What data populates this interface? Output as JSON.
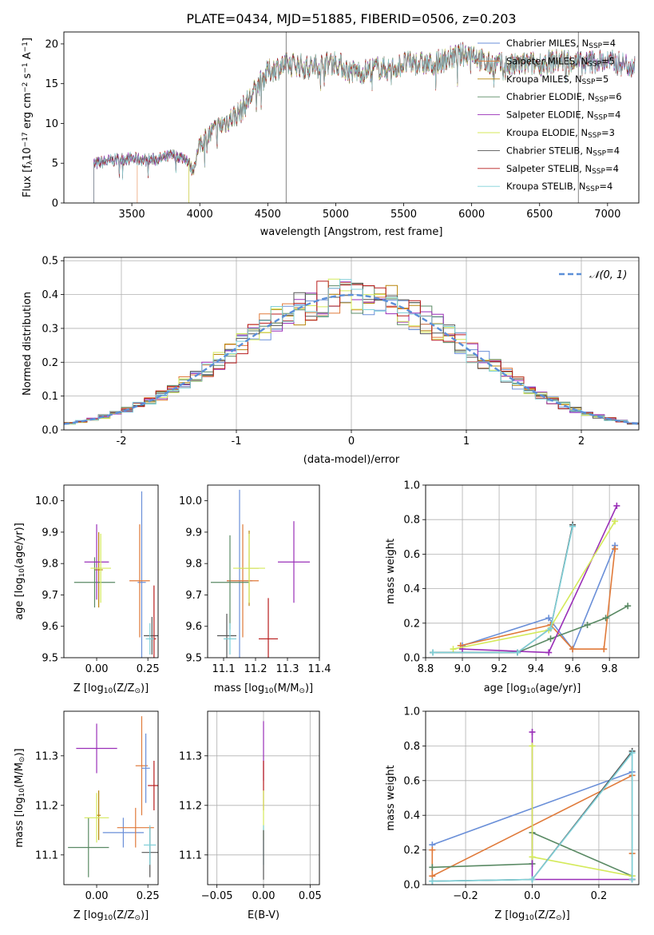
{
  "figure_title": "PLATE=0434, MJD=51885, FIBERID=0506, z=0.203",
  "series_styles": [
    {
      "name": "Chabrier MILES, N_SSP=4",
      "legend": "Chabrier MILES, N",
      "nssp": "=4",
      "color": "#6a8fd8"
    },
    {
      "name": "Salpeter MILES, N_SSP=5",
      "legend": "Salpeter MILES, N",
      "nssp": "=5",
      "color": "#e07a3a"
    },
    {
      "name": "Kroupa MILES, N_SSP=5",
      "legend": "Kroupa MILES, N",
      "nssp": "=5",
      "color": "#b8860b"
    },
    {
      "name": "Chabrier ELODIE, N_SSP=6",
      "legend": "Chabrier ELODIE, N",
      "nssp": "=6",
      "color": "#5a8a64"
    },
    {
      "name": "Salpeter ELODIE, N_SSP=4",
      "legend": "Salpeter ELODIE, N",
      "nssp": "=4",
      "color": "#9a2fb8"
    },
    {
      "name": "Kroupa ELODIE, N_SSP=3",
      "legend": "Kroupa ELODIE, N",
      "nssp": "=3",
      "color": "#d4ea5a"
    },
    {
      "name": "Chabrier STELIB, N_SSP=4",
      "legend": "Chabrier STELIB, N",
      "nssp": "=4",
      "color": "#555555"
    },
    {
      "name": "Salpeter STELIB, N_SSP=4",
      "legend": "Salpeter STELIB, N",
      "nssp": "=4",
      "color": "#b81c1c"
    },
    {
      "name": "Kroupa STELIB, N_SSP=4",
      "legend": "Kroupa STELIB, N",
      "nssp": "=4",
      "color": "#7fd0d8"
    }
  ],
  "chart_data": [
    {
      "id": "spectrum",
      "type": "line",
      "xlabel": "wavelength [Angstrom, rest frame]",
      "ylabel": "Flux [f",
      "ylabel_sub": "λ",
      "ylabel_rest": "10",
      "ylabel_exp": "−17",
      "ylabel_tail": " erg cm",
      "ylabel_exp2": "−2",
      "ylabel_tail2": " s",
      "ylabel_exp3": "−1",
      "ylabel_tail3": " A",
      "ylabel_exp4": "−1",
      "ylabel_tail4": "]",
      "xlim": [
        3000,
        7230
      ],
      "ylim": [
        0,
        21.5
      ],
      "xticks": [
        3500,
        4000,
        4500,
        5000,
        5500,
        6000,
        6500,
        7000
      ],
      "yticks": [
        0,
        5,
        10,
        15,
        20
      ],
      "grid": false,
      "legend_placement": "right",
      "spectrum_anchor_x": [
        3200,
        3300,
        3400,
        3500,
        3600,
        3700,
        3800,
        3900,
        3950,
        4000,
        4100,
        4200,
        4300,
        4400,
        4500,
        4600,
        4700,
        4800,
        4900,
        5000,
        5100,
        5200,
        5300,
        5400,
        5500,
        5600,
        5700,
        5800,
        5900,
        6000,
        6100,
        6200,
        6300,
        6400,
        6500,
        6600,
        6700,
        6800,
        6900,
        7000,
        7100,
        7200
      ],
      "spectrum_anchor_y": [
        4.8,
        5.2,
        5.5,
        5.6,
        5.4,
        5.5,
        6.0,
        5.6,
        4.0,
        7.5,
        9.0,
        10.3,
        11.5,
        14.0,
        16.5,
        17.2,
        17.5,
        17.0,
        17.4,
        17.8,
        16.5,
        16.5,
        17.0,
        16.8,
        17.5,
        17.6,
        17.4,
        18.0,
        18.5,
        19.0,
        17.5,
        17.4,
        17.2,
        17.5,
        17.5,
        17.8,
        18.0,
        17.5,
        17.8,
        17.8,
        17.5,
        17.3
      ],
      "series_start_x": [
        3220,
        3540,
        3920,
        3220,
        3220,
        3920,
        3220,
        3220,
        3220
      ],
      "series_end_x": [
        7200,
        7200,
        6780,
        7200,
        7200,
        6780,
        7200,
        7200,
        7200
      ],
      "spike_x": [
        4635,
        6785
      ]
    },
    {
      "id": "residuals",
      "type": "histogram",
      "xlabel": "(data-model)/error",
      "ylabel": "Normed distribution",
      "xlim": [
        -2.5,
        2.5
      ],
      "ylim": [
        0,
        0.51
      ],
      "xticks": [
        -2,
        -1,
        0,
        1,
        2
      ],
      "yticks": [
        0.0,
        0.1,
        0.2,
        0.3,
        0.4,
        0.5
      ],
      "grid": true,
      "bin_width": 0.1,
      "legend_label": "𝒩(0, 1)",
      "legend_placement": "top-right",
      "normal_color": "#5b8fd8"
    },
    {
      "id": "age_vs_Z",
      "type": "errorbar",
      "xlabel": "Z [log",
      "xlabel_sub": "10",
      "xlabel_tail": "(Z/Z",
      "xlabel_sub2": "⊙",
      "xlabel_tail2": ")]",
      "ylabel": "age  [log",
      "ylabel_sub": "10",
      "ylabel_tail": "(age/yr)]",
      "xlim": [
        -0.16,
        0.3
      ],
      "ylim": [
        9.5,
        10.05
      ],
      "xticks": [
        0.0,
        0.25
      ],
      "xtick_labels": [
        "0.00",
        "0.25"
      ],
      "yticks": [
        9.5,
        9.6,
        9.7,
        9.8,
        9.9,
        10.0
      ],
      "points": [
        {
          "series": 0,
          "x": 0.22,
          "y": 9.74,
          "xerr": 0.02,
          "yerr": 0.29
        },
        {
          "series": 1,
          "x": 0.21,
          "y": 9.745,
          "xerr": 0.05,
          "yerr": 0.18
        },
        {
          "series": 2,
          "x": 0.01,
          "y": 9.78,
          "xerr": 0.02,
          "yerr": 0.12
        },
        {
          "series": 3,
          "x": -0.01,
          "y": 9.74,
          "xerr": 0.1,
          "yerr": 0.08
        },
        {
          "series": 4,
          "x": 0.0,
          "y": 9.805,
          "xerr": 0.06,
          "yerr": 0.12
        },
        {
          "series": 5,
          "x": 0.02,
          "y": 9.785,
          "xerr": 0.05,
          "yerr": 0.11
        },
        {
          "series": 6,
          "x": 0.27,
          "y": 9.57,
          "xerr": 0.04,
          "yerr": 0.06
        },
        {
          "series": 7,
          "x": 0.28,
          "y": 9.56,
          "xerr": 0.01,
          "yerr": 0.17
        },
        {
          "series": 8,
          "x": 0.26,
          "y": 9.56,
          "xerr": 0.02,
          "yerr": 0.05
        }
      ]
    },
    {
      "id": "age_vs_mass",
      "type": "errorbar",
      "xlabel": "mass [log",
      "xlabel_sub": "10",
      "xlabel_tail": "(M/M",
      "xlabel_sub2": "⊙",
      "xlabel_tail2": ")]",
      "xlim": [
        11.05,
        11.4
      ],
      "ylim": [
        9.5,
        10.05
      ],
      "xticks": [
        11.1,
        11.2,
        11.3,
        11.4
      ],
      "yticks": [
        9.5,
        9.6,
        9.7,
        9.8,
        9.9,
        10.0
      ],
      "points": [
        {
          "series": 0,
          "x": 11.15,
          "y": 9.745,
          "xerr": 0.04,
          "yerr": 0.29
        },
        {
          "series": 1,
          "x": 11.16,
          "y": 9.745,
          "xerr": 0.05,
          "yerr": 0.18
        },
        {
          "series": 2,
          "x": 11.18,
          "y": 9.785,
          "xerr": 0.03,
          "yerr": 0.12
        },
        {
          "series": 3,
          "x": 11.12,
          "y": 9.74,
          "xerr": 0.06,
          "yerr": 0.15
        },
        {
          "series": 4,
          "x": 11.32,
          "y": 9.805,
          "xerr": 0.05,
          "yerr": 0.13
        },
        {
          "series": 5,
          "x": 11.18,
          "y": 9.785,
          "xerr": 0.05,
          "yerr": 0.11
        },
        {
          "series": 6,
          "x": 11.11,
          "y": 9.57,
          "xerr": 0.03,
          "yerr": 0.07
        },
        {
          "series": 7,
          "x": 11.24,
          "y": 9.56,
          "xerr": 0.03,
          "yerr": 0.13
        },
        {
          "series": 8,
          "x": 11.12,
          "y": 9.56,
          "xerr": 0.02,
          "yerr": 0.05
        }
      ]
    },
    {
      "id": "weight_vs_age",
      "type": "line",
      "xlabel": "age  [log",
      "xlabel_sub": "10",
      "xlabel_tail": "(age/yr)]",
      "ylabel": "mass weight",
      "xlim": [
        8.8,
        9.96
      ],
      "ylim": [
        0,
        1.0
      ],
      "xticks": [
        8.8,
        9.0,
        9.2,
        9.4,
        9.6,
        9.8
      ],
      "yticks": [
        0.0,
        0.2,
        0.4,
        0.6,
        0.8,
        1.0
      ],
      "grid": true,
      "series": [
        {
          "series": 0,
          "x": [
            9.0,
            9.47,
            9.6,
            9.83
          ],
          "y": [
            0.07,
            0.23,
            0.05,
            0.65
          ]
        },
        {
          "series": 1,
          "x": [
            8.99,
            9.48,
            9.6,
            9.77,
            9.83
          ],
          "y": [
            0.07,
            0.19,
            0.05,
            0.05,
            0.63
          ]
        },
        {
          "series": 3,
          "x": [
            8.84,
            9.3,
            9.48,
            9.68,
            9.78,
            9.9
          ],
          "y": [
            0.03,
            0.03,
            0.11,
            0.19,
            0.23,
            0.3
          ]
        },
        {
          "series": 4,
          "x": [
            9.0,
            9.47,
            9.84
          ],
          "y": [
            0.05,
            0.03,
            0.88
          ]
        },
        {
          "series": 5,
          "x": [
            8.95,
            9.47,
            9.83
          ],
          "y": [
            0.05,
            0.16,
            0.79
          ]
        },
        {
          "series": 6,
          "x": [
            8.84,
            9.3,
            9.48,
            9.6
          ],
          "y": [
            0.03,
            0.03,
            0.17,
            0.77
          ]
        },
        {
          "series": 8,
          "x": [
            8.84,
            9.3,
            9.48,
            9.6
          ],
          "y": [
            0.03,
            0.03,
            0.17,
            0.76
          ]
        }
      ]
    },
    {
      "id": "mass_vs_Z",
      "type": "errorbar",
      "xlabel": "Z [log",
      "xlabel_sub": "10",
      "xlabel_tail": "(Z/Z",
      "xlabel_sub2": "⊙",
      "xlabel_tail2": ")]",
      "ylabel": "mass [log",
      "ylabel_sub": "10",
      "ylabel_tail": "(M/M",
      "ylabel_sub2": "⊙",
      "ylabel_tail2": ")]",
      "xlim": [
        -0.16,
        0.3
      ],
      "ylim": [
        11.04,
        11.39
      ],
      "xticks": [
        0.0,
        0.25
      ],
      "xtick_labels": [
        "0.00",
        "0.25"
      ],
      "yticks": [
        11.1,
        11.2,
        11.3
      ],
      "points": [
        {
          "series": 0,
          "x": 0.13,
          "y": 11.145,
          "xerr": 0.1,
          "yerr": 0.03
        },
        {
          "series": 1,
          "x": 0.19,
          "y": 11.155,
          "xerr": 0.09,
          "yerr": 0.04
        },
        {
          "series": 2,
          "x": 0.01,
          "y": 11.18,
          "xerr": 0.01,
          "yerr": 0.05
        },
        {
          "series": 3,
          "x": -0.04,
          "y": 11.115,
          "xerr": 0.1,
          "yerr": 0.06
        },
        {
          "series": 4,
          "x": 0.0,
          "y": 11.315,
          "xerr": 0.1,
          "yerr": 0.05
        },
        {
          "series": 5,
          "x": 0.0,
          "y": 11.175,
          "xerr": 0.06,
          "yerr": 0.05
        },
        {
          "series": 6,
          "x": 0.26,
          "y": 11.105,
          "xerr": 0.04,
          "yerr": 0.05
        },
        {
          "series": 7,
          "x": 0.28,
          "y": 11.24,
          "xerr": 0.03,
          "yerr": 0.05
        },
        {
          "series": 8,
          "x": 0.26,
          "y": 11.12,
          "xerr": 0.03,
          "yerr": 0.04
        },
        {
          "series": 1,
          "x": 0.22,
          "y": 11.28,
          "xerr": 0.03,
          "yerr": 0.1
        },
        {
          "series": 0,
          "x": 0.24,
          "y": 11.275,
          "xerr": 0.02,
          "yerr": 0.07
        }
      ]
    },
    {
      "id": "mass_vs_EBV",
      "type": "errorbar",
      "xlabel": "E(B-V)",
      "xlim": [
        -0.06,
        0.06
      ],
      "ylim": [
        11.04,
        11.39
      ],
      "xticks": [
        -0.05,
        0.0,
        0.05
      ],
      "xtick_labels": [
        "−0.05",
        "0.00",
        "0.05"
      ],
      "yticks": [
        11.1,
        11.2,
        11.3
      ],
      "grid": true,
      "points": [
        {
          "series": 4,
          "x": 0.0,
          "y": 11.31,
          "xerr": 0.0,
          "yerr": 0.06
        },
        {
          "series": 7,
          "x": 0.0,
          "y": 11.24,
          "xerr": 0.0,
          "yerr": 0.05
        },
        {
          "series": 5,
          "x": 0.0,
          "y": 11.18,
          "xerr": 0.0,
          "yerr": 0.05
        },
        {
          "series": 8,
          "x": 0.0,
          "y": 11.12,
          "xerr": 0.0,
          "yerr": 0.04
        },
        {
          "series": 6,
          "x": 0.0,
          "y": 11.1,
          "xerr": 0.0,
          "yerr": 0.05
        }
      ]
    },
    {
      "id": "weight_vs_Z",
      "type": "line",
      "xlabel": "Z [log",
      "xlabel_sub": "10",
      "xlabel_tail": "(Z/Z",
      "xlabel_sub2": "⊙",
      "xlabel_tail2": ")]",
      "ylabel": "mass weight",
      "xlim": [
        -0.32,
        0.32
      ],
      "ylim": [
        0,
        1.0
      ],
      "xticks": [
        -0.2,
        0.0,
        0.2
      ],
      "xtick_labels": [
        "−0.2",
        "0.0",
        "0.2"
      ],
      "yticks": [
        0.0,
        0.2,
        0.4,
        0.6,
        0.8,
        1.0
      ],
      "grid": true,
      "series": [
        {
          "series": 0,
          "x": [
            -0.3,
            0.3
          ],
          "y": [
            0.23,
            0.65
          ]
        },
        {
          "series": 1,
          "x": [
            -0.3,
            -0.3,
            0.3,
            0.3
          ],
          "y": [
            0.2,
            0.05,
            0.63,
            0.18
          ]
        },
        {
          "series": 3,
          "x": [
            -0.3,
            0.0,
            0.0,
            0.3
          ],
          "y": [
            0.1,
            0.12,
            0.3,
            0.05
          ]
        },
        {
          "series": 4,
          "x": [
            0.0,
            0.0,
            0.3
          ],
          "y": [
            0.88,
            0.03,
            0.03
          ]
        },
        {
          "series": 5,
          "x": [
            0.0,
            0.0,
            0.3
          ],
          "y": [
            0.8,
            0.16,
            0.05
          ]
        },
        {
          "series": 6,
          "x": [
            -0.3,
            0.0,
            0.0,
            0.3,
            0.3
          ],
          "y": [
            0.02,
            0.03,
            0.03,
            0.77,
            0.03
          ]
        },
        {
          "series": 8,
          "x": [
            -0.3,
            0.0,
            0.0,
            0.3,
            0.3
          ],
          "y": [
            0.02,
            0.03,
            0.03,
            0.76,
            0.03
          ]
        }
      ]
    }
  ]
}
